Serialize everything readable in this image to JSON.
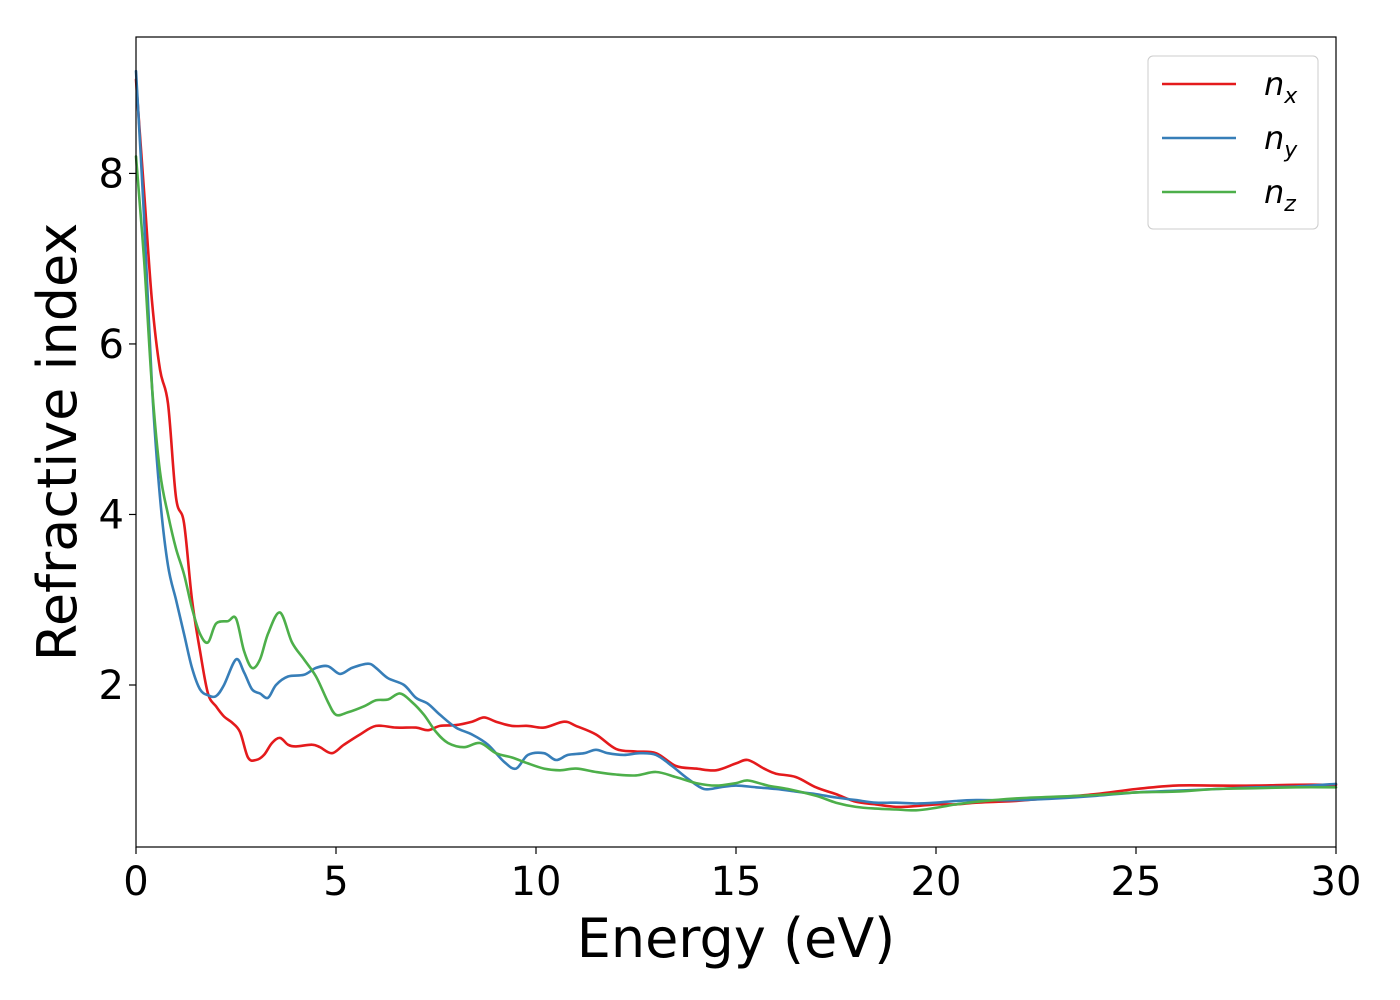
{
  "chart_data": {
    "type": "line",
    "title": "",
    "xlabel": "Energy (eV)",
    "ylabel": "Refractive index",
    "xlim": [
      0,
      30
    ],
    "ylim": [
      0.1,
      9.6
    ],
    "xticks": [
      "0",
      "5",
      "10",
      "15",
      "20",
      "25",
      "30"
    ],
    "yticks": [
      "2",
      "4",
      "6",
      "8"
    ],
    "grid": false,
    "legend_position": "top-right",
    "series": [
      {
        "name": "n",
        "subscript": "x",
        "color": "#e41a1c",
        "points": [
          [
            0,
            9.1
          ],
          [
            0.2,
            7.8
          ],
          [
            0.4,
            6.5
          ],
          [
            0.6,
            5.7
          ],
          [
            0.8,
            5.3
          ],
          [
            1.0,
            4.2
          ],
          [
            1.2,
            3.9
          ],
          [
            1.4,
            3.0
          ],
          [
            1.6,
            2.4
          ],
          [
            1.8,
            1.9
          ],
          [
            2.0,
            1.75
          ],
          [
            2.2,
            1.63
          ],
          [
            2.4,
            1.56
          ],
          [
            2.6,
            1.45
          ],
          [
            2.8,
            1.15
          ],
          [
            3.0,
            1.12
          ],
          [
            3.2,
            1.18
          ],
          [
            3.4,
            1.32
          ],
          [
            3.6,
            1.38
          ],
          [
            3.8,
            1.3
          ],
          [
            4.0,
            1.28
          ],
          [
            4.4,
            1.3
          ],
          [
            4.6,
            1.27
          ],
          [
            4.9,
            1.2
          ],
          [
            5.2,
            1.3
          ],
          [
            5.6,
            1.42
          ],
          [
            6.0,
            1.52
          ],
          [
            6.5,
            1.5
          ],
          [
            7.0,
            1.5
          ],
          [
            7.3,
            1.47
          ],
          [
            7.6,
            1.52
          ],
          [
            8.0,
            1.53
          ],
          [
            8.4,
            1.57
          ],
          [
            8.7,
            1.62
          ],
          [
            9.0,
            1.57
          ],
          [
            9.4,
            1.52
          ],
          [
            9.8,
            1.52
          ],
          [
            10.2,
            1.5
          ],
          [
            10.7,
            1.57
          ],
          [
            11.0,
            1.52
          ],
          [
            11.5,
            1.42
          ],
          [
            12.0,
            1.25
          ],
          [
            12.5,
            1.22
          ],
          [
            13.0,
            1.2
          ],
          [
            13.5,
            1.05
          ],
          [
            14.0,
            1.02
          ],
          [
            14.5,
            1.0
          ],
          [
            15.0,
            1.08
          ],
          [
            15.3,
            1.12
          ],
          [
            15.7,
            1.02
          ],
          [
            16.0,
            0.96
          ],
          [
            16.5,
            0.92
          ],
          [
            17.0,
            0.8
          ],
          [
            17.5,
            0.72
          ],
          [
            18.0,
            0.63
          ],
          [
            18.5,
            0.6
          ],
          [
            19.0,
            0.57
          ],
          [
            19.5,
            0.58
          ],
          [
            20.0,
            0.6
          ],
          [
            20.5,
            0.6
          ],
          [
            21.0,
            0.62
          ],
          [
            21.5,
            0.63
          ],
          [
            22.0,
            0.64
          ],
          [
            23.0,
            0.68
          ],
          [
            24.0,
            0.72
          ],
          [
            25.0,
            0.78
          ],
          [
            26.0,
            0.82
          ],
          [
            27.0,
            0.82
          ],
          [
            28.0,
            0.82
          ],
          [
            29.0,
            0.83
          ],
          [
            30.0,
            0.83
          ]
        ]
      },
      {
        "name": "n",
        "subscript": "y",
        "color": "#377eb8",
        "points": [
          [
            0,
            9.2
          ],
          [
            0.2,
            7.5
          ],
          [
            0.4,
            5.5
          ],
          [
            0.6,
            4.2
          ],
          [
            0.8,
            3.4
          ],
          [
            1.0,
            3.0
          ],
          [
            1.2,
            2.6
          ],
          [
            1.4,
            2.2
          ],
          [
            1.6,
            1.95
          ],
          [
            1.8,
            1.88
          ],
          [
            2.0,
            1.87
          ],
          [
            2.2,
            2.0
          ],
          [
            2.5,
            2.3
          ],
          [
            2.7,
            2.15
          ],
          [
            2.9,
            1.95
          ],
          [
            3.1,
            1.9
          ],
          [
            3.3,
            1.85
          ],
          [
            3.5,
            2.0
          ],
          [
            3.8,
            2.1
          ],
          [
            4.2,
            2.12
          ],
          [
            4.5,
            2.2
          ],
          [
            4.8,
            2.22
          ],
          [
            5.1,
            2.13
          ],
          [
            5.4,
            2.2
          ],
          [
            5.8,
            2.25
          ],
          [
            6.0,
            2.2
          ],
          [
            6.3,
            2.08
          ],
          [
            6.7,
            2.0
          ],
          [
            7.0,
            1.85
          ],
          [
            7.3,
            1.78
          ],
          [
            7.6,
            1.65
          ],
          [
            8.0,
            1.5
          ],
          [
            8.4,
            1.42
          ],
          [
            8.8,
            1.3
          ],
          [
            9.2,
            1.1
          ],
          [
            9.5,
            1.02
          ],
          [
            9.8,
            1.18
          ],
          [
            10.2,
            1.2
          ],
          [
            10.5,
            1.12
          ],
          [
            10.8,
            1.18
          ],
          [
            11.2,
            1.2
          ],
          [
            11.5,
            1.24
          ],
          [
            11.8,
            1.2
          ],
          [
            12.2,
            1.18
          ],
          [
            12.6,
            1.2
          ],
          [
            13.0,
            1.18
          ],
          [
            13.4,
            1.05
          ],
          [
            13.8,
            0.9
          ],
          [
            14.2,
            0.78
          ],
          [
            14.6,
            0.8
          ],
          [
            15.0,
            0.82
          ],
          [
            15.5,
            0.8
          ],
          [
            16.0,
            0.78
          ],
          [
            16.5,
            0.75
          ],
          [
            17.0,
            0.72
          ],
          [
            17.5,
            0.68
          ],
          [
            18.0,
            0.65
          ],
          [
            18.5,
            0.62
          ],
          [
            19.0,
            0.62
          ],
          [
            19.5,
            0.61
          ],
          [
            20.0,
            0.62
          ],
          [
            20.5,
            0.64
          ],
          [
            21.0,
            0.65
          ],
          [
            22.0,
            0.65
          ],
          [
            23.0,
            0.67
          ],
          [
            24.0,
            0.7
          ],
          [
            25.0,
            0.74
          ],
          [
            26.0,
            0.76
          ],
          [
            27.0,
            0.78
          ],
          [
            28.0,
            0.8
          ],
          [
            29.0,
            0.81
          ],
          [
            30.0,
            0.84
          ]
        ]
      },
      {
        "name": "n",
        "subscript": "z",
        "color": "#4daf4a",
        "points": [
          [
            0,
            8.2
          ],
          [
            0.2,
            7.0
          ],
          [
            0.4,
            5.5
          ],
          [
            0.6,
            4.5
          ],
          [
            0.8,
            4.0
          ],
          [
            1.0,
            3.6
          ],
          [
            1.2,
            3.3
          ],
          [
            1.4,
            2.9
          ],
          [
            1.6,
            2.6
          ],
          [
            1.8,
            2.5
          ],
          [
            2.0,
            2.72
          ],
          [
            2.3,
            2.75
          ],
          [
            2.5,
            2.78
          ],
          [
            2.7,
            2.4
          ],
          [
            2.9,
            2.2
          ],
          [
            3.1,
            2.3
          ],
          [
            3.3,
            2.6
          ],
          [
            3.6,
            2.85
          ],
          [
            3.9,
            2.5
          ],
          [
            4.2,
            2.3
          ],
          [
            4.5,
            2.1
          ],
          [
            4.8,
            1.8
          ],
          [
            5.0,
            1.65
          ],
          [
            5.3,
            1.68
          ],
          [
            5.7,
            1.75
          ],
          [
            6.0,
            1.82
          ],
          [
            6.3,
            1.83
          ],
          [
            6.6,
            1.9
          ],
          [
            6.9,
            1.8
          ],
          [
            7.2,
            1.65
          ],
          [
            7.5,
            1.45
          ],
          [
            7.8,
            1.32
          ],
          [
            8.2,
            1.27
          ],
          [
            8.6,
            1.32
          ],
          [
            9.0,
            1.2
          ],
          [
            9.4,
            1.15
          ],
          [
            9.8,
            1.08
          ],
          [
            10.2,
            1.02
          ],
          [
            10.6,
            1.0
          ],
          [
            11.0,
            1.02
          ],
          [
            11.5,
            0.98
          ],
          [
            12.0,
            0.95
          ],
          [
            12.5,
            0.94
          ],
          [
            13.0,
            0.98
          ],
          [
            13.5,
            0.92
          ],
          [
            14.0,
            0.85
          ],
          [
            14.5,
            0.82
          ],
          [
            15.0,
            0.85
          ],
          [
            15.3,
            0.88
          ],
          [
            15.8,
            0.82
          ],
          [
            16.3,
            0.78
          ],
          [
            17.0,
            0.7
          ],
          [
            17.5,
            0.62
          ],
          [
            18.0,
            0.57
          ],
          [
            18.5,
            0.55
          ],
          [
            19.0,
            0.54
          ],
          [
            19.5,
            0.53
          ],
          [
            20.0,
            0.56
          ],
          [
            20.5,
            0.6
          ],
          [
            21.0,
            0.63
          ],
          [
            22.0,
            0.67
          ],
          [
            23.0,
            0.69
          ],
          [
            24.0,
            0.71
          ],
          [
            25.0,
            0.74
          ],
          [
            26.0,
            0.75
          ],
          [
            27.0,
            0.78
          ],
          [
            28.0,
            0.79
          ],
          [
            29.0,
            0.8
          ],
          [
            30.0,
            0.8
          ]
        ]
      }
    ]
  }
}
